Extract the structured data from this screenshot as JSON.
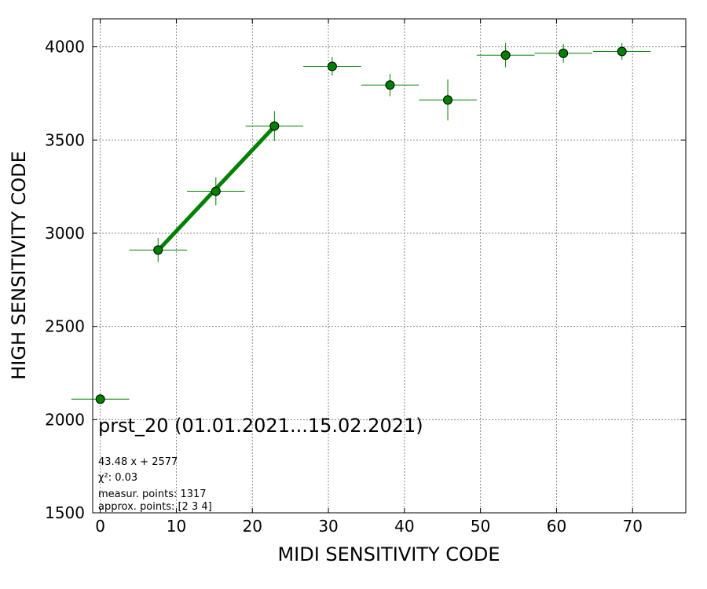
{
  "chart_data": {
    "type": "scatter",
    "title": "prst_20 (01.01.2021...15.02.2021)",
    "xlabel": "MIDI SENSITIVITY CODE",
    "ylabel": "HIGH SENSITIVITY CODE",
    "xlim": [
      -1,
      77
    ],
    "ylim": [
      1500,
      4150
    ],
    "xticks": [
      0,
      10,
      20,
      30,
      40,
      50,
      60,
      70
    ],
    "yticks": [
      1500,
      2000,
      2500,
      3000,
      3500,
      4000
    ],
    "grid": true,
    "annotations": [
      "43.48 x + 2577",
      "χ²: 0.03",
      "measur. points: 1317",
      "approx. points: [2 3 4]"
    ],
    "fit": {
      "slope": 43.48,
      "intercept": 2577,
      "x_range": [
        7.6,
        22.9
      ],
      "color": "#008000"
    },
    "marker_color": "#008000",
    "series": [
      {
        "points": [
          {
            "x": 0,
            "y": 2110,
            "xerr": 3.8,
            "yerr": 0
          },
          {
            "x": 7.6,
            "y": 2910,
            "xerr": 3.8,
            "yerr": 65
          },
          {
            "x": 15.2,
            "y": 3225,
            "xerr": 3.8,
            "yerr": 75
          },
          {
            "x": 22.9,
            "y": 3575,
            "xerr": 3.8,
            "yerr": 80
          },
          {
            "x": 30.5,
            "y": 3895,
            "xerr": 3.8,
            "yerr": 50
          },
          {
            "x": 38.1,
            "y": 3795,
            "xerr": 3.8,
            "yerr": 60
          },
          {
            "x": 45.7,
            "y": 3715,
            "xerr": 3.8,
            "yerr": 110
          },
          {
            "x": 53.3,
            "y": 3955,
            "xerr": 3.8,
            "yerr": 65
          },
          {
            "x": 60.9,
            "y": 3965,
            "xerr": 3.8,
            "yerr": 50
          },
          {
            "x": 68.6,
            "y": 3975,
            "xerr": 3.8,
            "yerr": 45
          }
        ]
      }
    ]
  }
}
